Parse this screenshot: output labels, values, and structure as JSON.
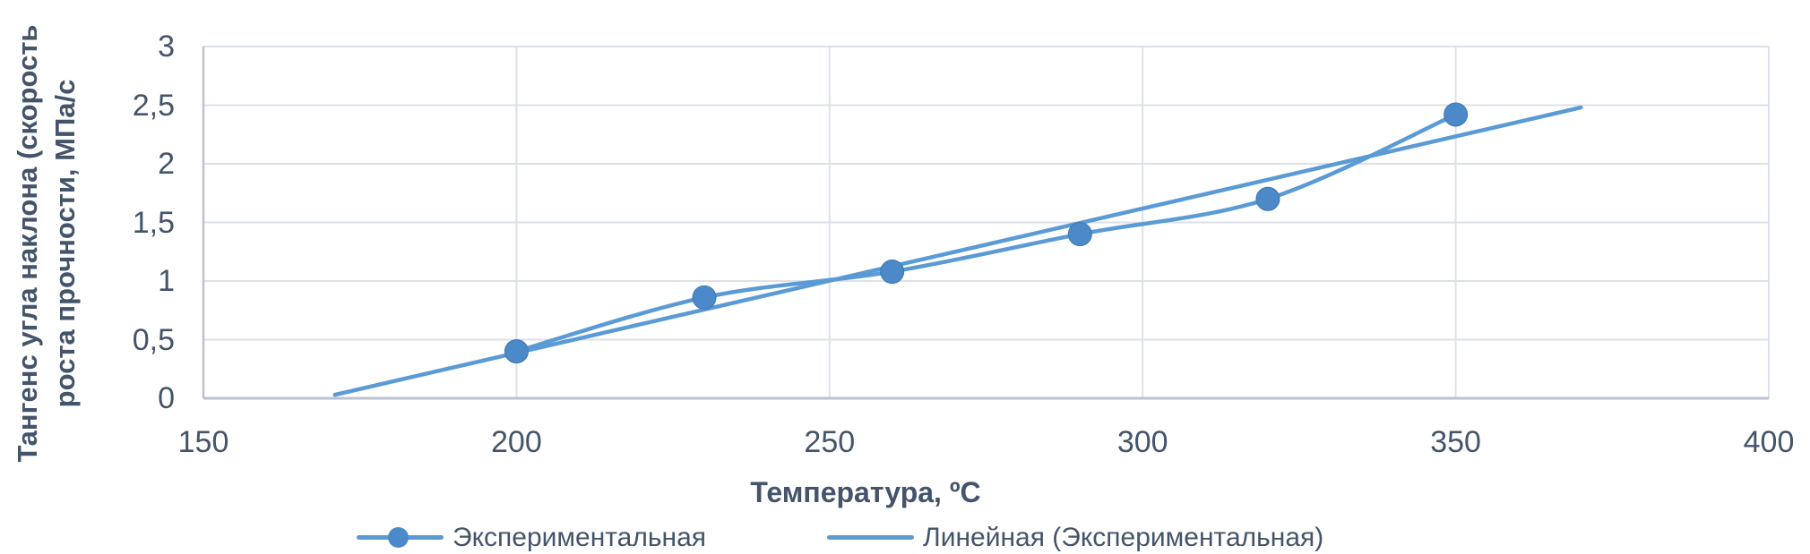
{
  "chart_data": {
    "type": "line",
    "title": "",
    "xlabel": "Температура, ºС",
    "ylabel_line1": "Тангенс угла наклона (скорость",
    "ylabel_line2": "роста прочности, МПа/с",
    "xlim": [
      150,
      400
    ],
    "ylim": [
      0,
      3
    ],
    "xticks": {
      "values": [
        150,
        200,
        250,
        300,
        350,
        400
      ],
      "labels": [
        "150",
        "200",
        "250",
        "300",
        "350",
        "400"
      ]
    },
    "yticks": {
      "values": [
        0,
        0.5,
        1,
        1.5,
        2,
        2.5,
        3
      ],
      "labels": [
        "0",
        "0,5",
        "1",
        "1,5",
        "2",
        "2,5",
        "3"
      ]
    },
    "grid": true,
    "legend_position": "bottom-center",
    "series": [
      {
        "name": "Экспериментальная",
        "type": "smooth-line-with-markers",
        "x": [
          200,
          230,
          260,
          290,
          320,
          350
        ],
        "y": [
          0.4,
          0.86,
          1.08,
          1.4,
          1.7,
          2.42
        ]
      },
      {
        "name": "Линейная (Экспериментальная)",
        "type": "linear-trendline",
        "x": [
          171,
          370
        ],
        "y": [
          0.03,
          2.48
        ]
      }
    ],
    "colors": {
      "series_line": "#5B9BD5",
      "marker_fill": "#4C89C8",
      "marker_edge": "#3E76AE",
      "gridline": "#DCE1E9",
      "axis_line": "#B9C2D1",
      "text": "#44546A"
    }
  }
}
